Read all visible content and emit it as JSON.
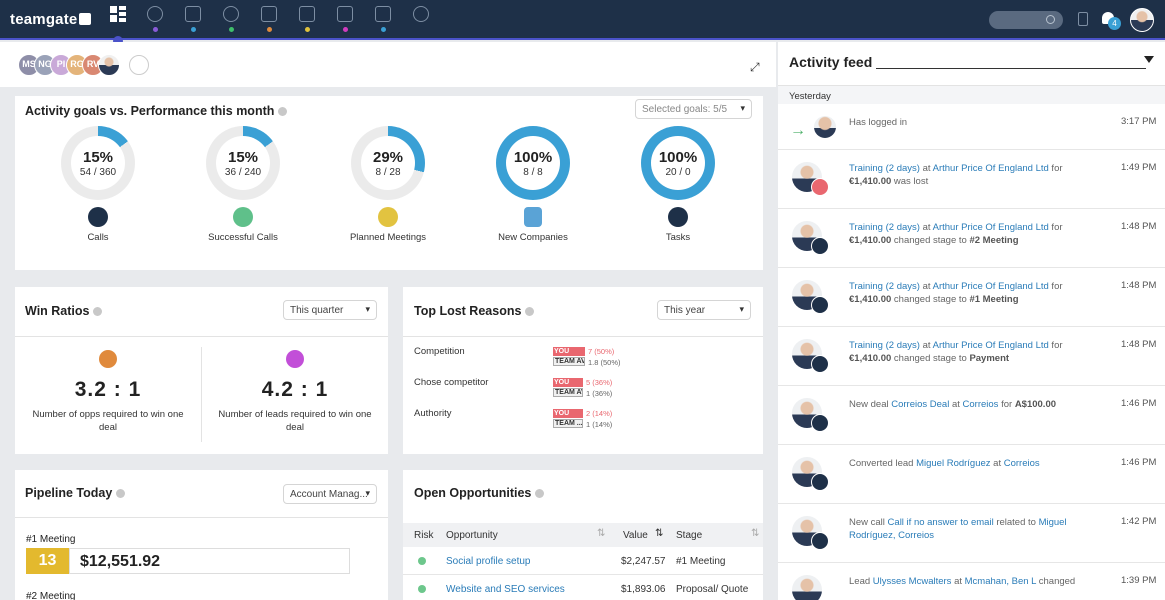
{
  "app": {
    "logo": "teamgate"
  },
  "nav": {
    "notification_count": "4"
  },
  "team_avatars": [
    "MS",
    "NG",
    "PI",
    "RG",
    "RV"
  ],
  "goals": {
    "title": "Activity goals vs. Performance this month",
    "selected": "Selected goals: 5/5",
    "items": [
      {
        "pct": "15%",
        "ratio": "54 / 360",
        "label": "Calls",
        "progress": 0.15
      },
      {
        "pct": "15%",
        "ratio": "36 / 240",
        "label": "Successful Calls",
        "progress": 0.15
      },
      {
        "pct": "29%",
        "ratio": "8 / 28",
        "label": "Planned Meetings",
        "progress": 0.29
      },
      {
        "pct": "100%",
        "ratio": "8 / 8",
        "label": "New Companies",
        "progress": 1.0
      },
      {
        "pct": "100%",
        "ratio": "20 / 0",
        "label": "Tasks",
        "progress": 1.0
      }
    ]
  },
  "win_ratios": {
    "title": "Win Ratios",
    "period": "This quarter",
    "opps_value": "3.2 : 1",
    "opps_desc": "Number of opps required to win one deal",
    "leads_value": "4.2 : 1",
    "leads_desc": "Number of leads required to win one deal"
  },
  "lost_reasons": {
    "title": "Top Lost Reasons",
    "period": "This year",
    "you_label": "YOU",
    "team_label": "TEAM AVG.",
    "team_label_short": "TEAM ...",
    "rows": [
      {
        "reason": "Competition",
        "you": "7 (50%)",
        "team": "1.8 (50%)",
        "you_share": 0.5,
        "team_share": 0.5
      },
      {
        "reason": "Chose competitor",
        "you": "5 (36%)",
        "team": "1 (36%)",
        "you_share": 0.36,
        "team_share": 0.36
      },
      {
        "reason": "Authority",
        "you": "2 (14%)",
        "team": "1 (14%)",
        "you_share": 0.14,
        "team_share": 0.14
      }
    ]
  },
  "pipeline": {
    "title": "Pipeline Today",
    "filter": "Account Manag...",
    "stage1": "#1 Meeting",
    "count1": "13",
    "amount1": "$12,551.92",
    "stage2": "#2 Meeting"
  },
  "opportunities": {
    "title": "Open Opportunities",
    "headers": {
      "risk": "Risk",
      "opportunity": "Opportunity",
      "value": "Value",
      "stage": "Stage"
    },
    "rows": [
      {
        "name": "Social profile setup",
        "value": "$2,247.57",
        "stage": "#1 Meeting"
      },
      {
        "name": "Website and SEO services",
        "value": "$1,893.06",
        "stage": "Proposal/ Quote"
      }
    ]
  },
  "feed": {
    "title": "Activity feed",
    "day": "Yesterday",
    "items": [
      {
        "parts": [
          [
            "Has logged in",
            ""
          ]
        ],
        "time": "3:17 PM"
      },
      {
        "parts": [
          [
            "Training (2 days)",
            "lnk"
          ],
          [
            " at ",
            ""
          ],
          [
            "Arthur Price Of England Ltd",
            "lnk"
          ],
          [
            " for ",
            ""
          ],
          [
            "€1,410.00",
            "bld"
          ],
          [
            " was lost",
            ""
          ]
        ],
        "time": "1:49 PM"
      },
      {
        "parts": [
          [
            "Training (2 days)",
            "lnk"
          ],
          [
            " at ",
            ""
          ],
          [
            "Arthur Price Of England Ltd",
            "lnk"
          ],
          [
            " for ",
            ""
          ],
          [
            "€1,410.00",
            "bld"
          ],
          [
            " changed stage to ",
            ""
          ],
          [
            "#2 Meeting",
            "bld"
          ]
        ],
        "time": "1:48 PM"
      },
      {
        "parts": [
          [
            "Training (2 days)",
            "lnk"
          ],
          [
            " at ",
            ""
          ],
          [
            "Arthur Price Of England Ltd",
            "lnk"
          ],
          [
            " for ",
            ""
          ],
          [
            "€1,410.00",
            "bld"
          ],
          [
            " changed stage to ",
            ""
          ],
          [
            "#1 Meeting",
            "bld"
          ]
        ],
        "time": "1:48 PM"
      },
      {
        "parts": [
          [
            "Training (2 days)",
            "lnk"
          ],
          [
            " at ",
            ""
          ],
          [
            "Arthur Price Of England Ltd",
            "lnk"
          ],
          [
            " for ",
            ""
          ],
          [
            "€1,410.00",
            "bld"
          ],
          [
            " changed stage to ",
            ""
          ],
          [
            "Payment",
            "bld"
          ]
        ],
        "time": "1:48 PM"
      },
      {
        "parts": [
          [
            "New deal ",
            ""
          ],
          [
            "Correios Deal",
            "lnk"
          ],
          [
            " at ",
            ""
          ],
          [
            "Correios",
            "lnk"
          ],
          [
            " for ",
            ""
          ],
          [
            "A$100.00",
            "bld"
          ]
        ],
        "time": "1:46 PM"
      },
      {
        "parts": [
          [
            "Converted lead ",
            ""
          ],
          [
            "Miguel Rodríguez",
            "lnk"
          ],
          [
            " at ",
            ""
          ],
          [
            "Correios",
            "lnk"
          ]
        ],
        "time": "1:46 PM"
      },
      {
        "parts": [
          [
            "New call ",
            ""
          ],
          [
            "Call if no answer to email",
            "lnk"
          ],
          [
            " related to ",
            ""
          ],
          [
            "Miguel Rodríguez, Correios",
            "lnk"
          ]
        ],
        "time": "1:42 PM"
      },
      {
        "parts": [
          [
            "Lead ",
            ""
          ],
          [
            "Ulysses Mcwalters",
            "lnk"
          ],
          [
            " at ",
            ""
          ],
          [
            "Mcmahan, Ben L",
            "lnk"
          ],
          [
            " changed",
            ""
          ]
        ],
        "time": "1:39 PM"
      }
    ]
  },
  "colors": {
    "nav_bg": "#1e3048",
    "accent": "#3aa0d5",
    "lost_red": "#e9676f",
    "risk_green": "#6dc78c"
  }
}
